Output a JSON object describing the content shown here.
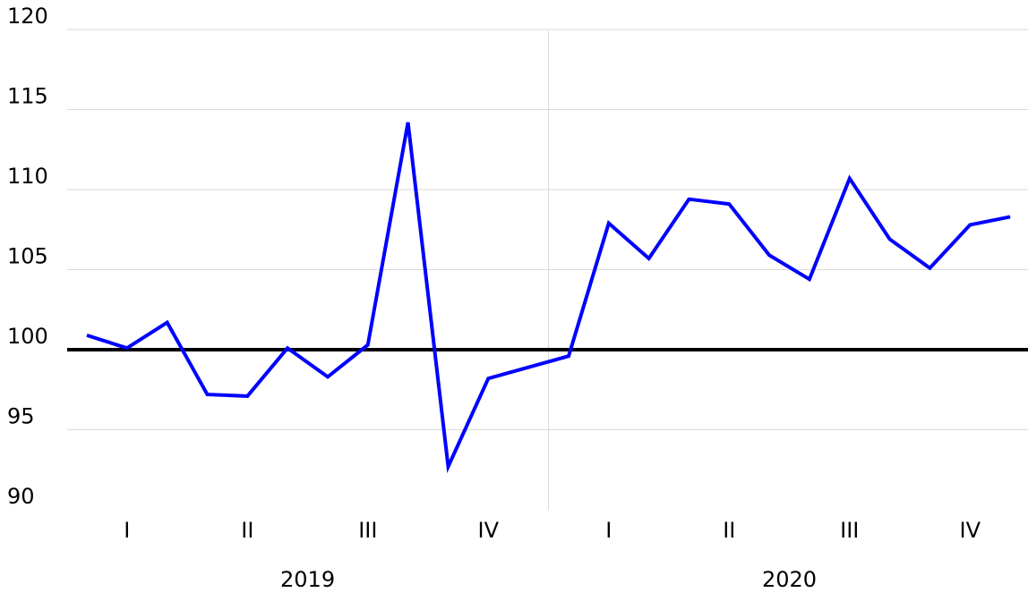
{
  "chart_data": {
    "type": "line",
    "categories": [
      null,
      null,
      null,
      null,
      null,
      null,
      null,
      null,
      null,
      null,
      null,
      null,
      null,
      null,
      null,
      null,
      null,
      null,
      null,
      null,
      null,
      null,
      null,
      null
    ],
    "x_groups": [
      {
        "label": "2019",
        "quarters": [
          "I",
          "II",
          "III",
          "IV"
        ]
      },
      {
        "label": "2020",
        "quarters": [
          "I",
          "II",
          "III",
          "IV"
        ]
      }
    ],
    "values": [
      100.9,
      100.1,
      101.7,
      97.2,
      97.1,
      100.1,
      98.3,
      100.3,
      114.2,
      92.7,
      98.2,
      98.9,
      99.6,
      107.9,
      105.7,
      109.4,
      109.1,
      105.9,
      104.4,
      110.7,
      106.9,
      105.1,
      107.8,
      108.3
    ],
    "color": "#0000ff",
    "reference_line": 100,
    "ylim": [
      90,
      120
    ],
    "yticks": [
      90,
      95,
      100,
      105,
      110,
      115,
      120
    ],
    "grid": true
  }
}
